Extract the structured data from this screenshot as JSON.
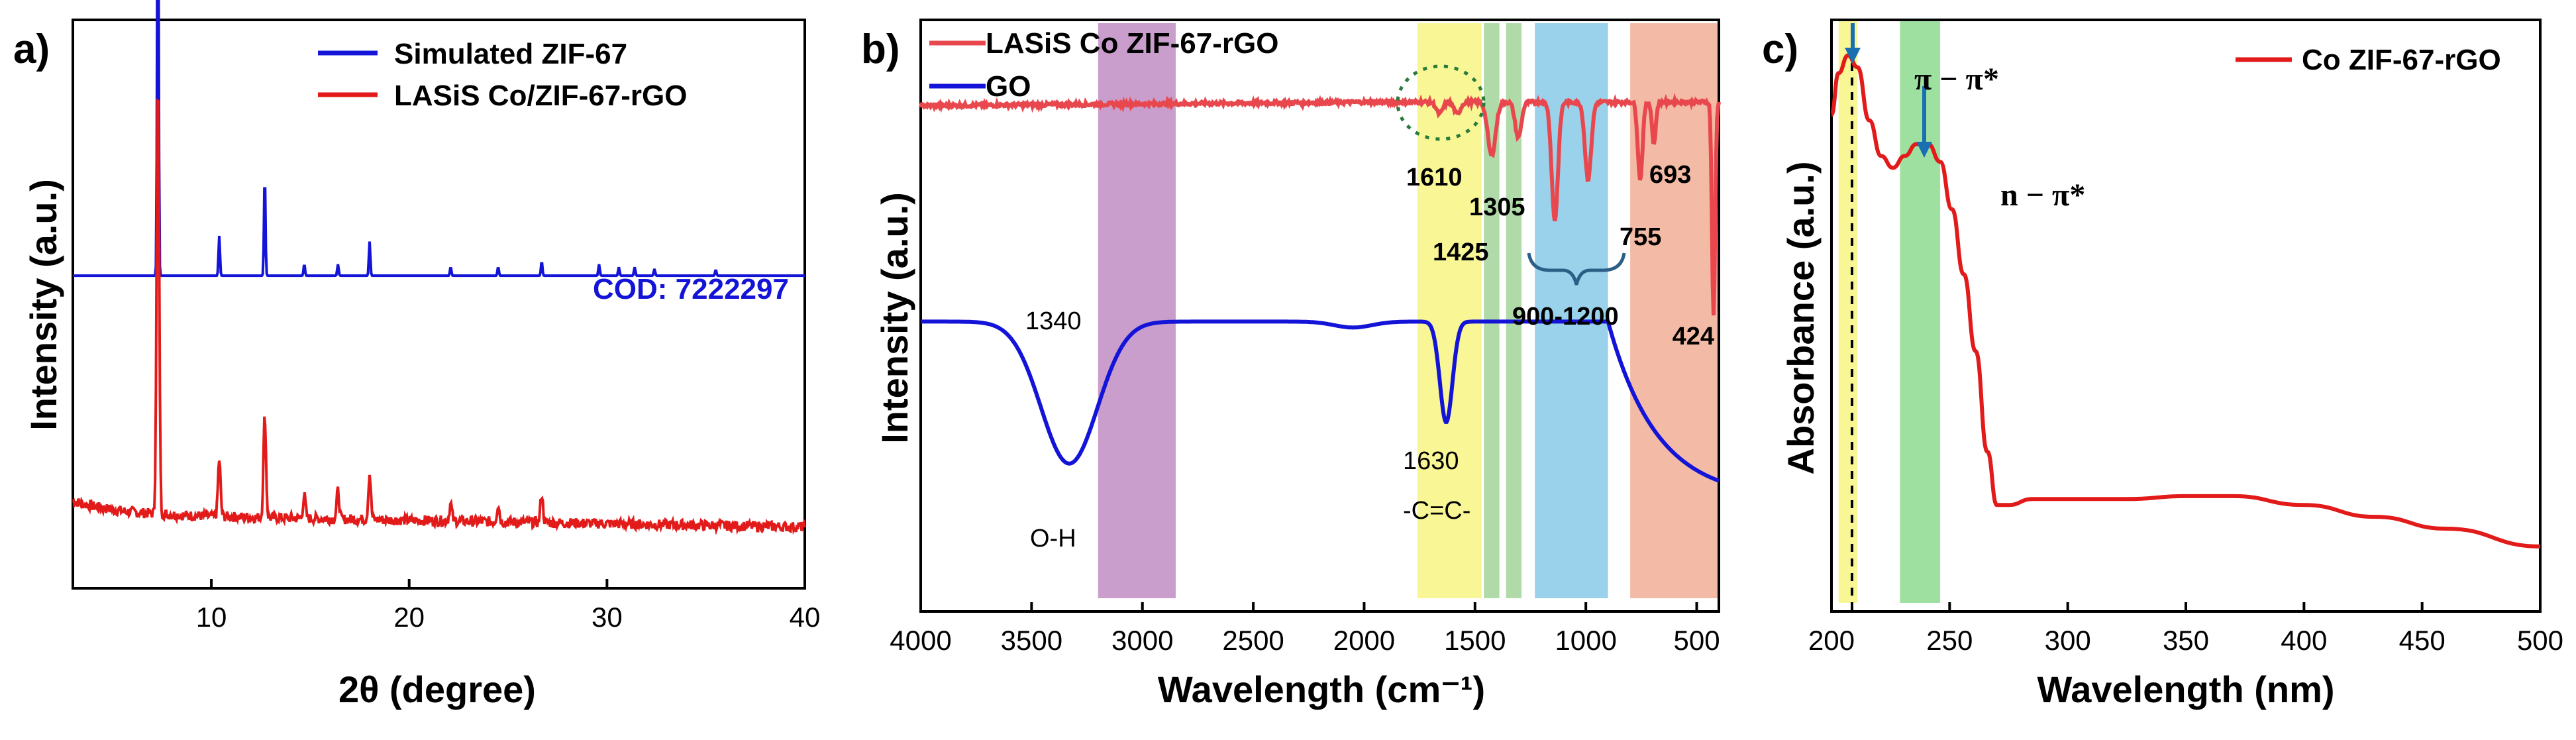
{
  "chart_data": [
    {
      "panel_label": "a)",
      "type": "line",
      "xlabel": "2θ (degree)",
      "ylabel": "Intensity (a.u.)",
      "xlim": [
        3,
        40
      ],
      "xticks": [
        10,
        20,
        30,
        40
      ],
      "annotation": "COD: 7222297",
      "legend": "top-right",
      "series": [
        {
          "name": "Simulated ZIF-67",
          "color": "#1414d8",
          "baseline": 0.55,
          "offset": 0,
          "peaks": [
            [
              7.3,
              0.87
            ],
            [
              10.4,
              0.07
            ],
            [
              12.7,
              0.18
            ],
            [
              14.7,
              0.02
            ],
            [
              16.4,
              0.02
            ],
            [
              18.0,
              0.06
            ],
            [
              22.1,
              0.015
            ],
            [
              24.5,
              0.015
            ],
            [
              26.7,
              0.025
            ],
            [
              29.6,
              0.02
            ],
            [
              30.6,
              0.015
            ],
            [
              31.4,
              0.015
            ],
            [
              32.4,
              0.012
            ],
            [
              35.5,
              0.01
            ]
          ]
        },
        {
          "name": "LASiS Co/ZIF-67-rGO",
          "color": "#e21a1a",
          "baseline": 0.13,
          "offset": 0,
          "peaks": [
            [
              7.3,
              0.76
            ],
            [
              10.4,
              0.1
            ],
            [
              12.7,
              0.18
            ],
            [
              14.7,
              0.04
            ],
            [
              16.4,
              0.05
            ],
            [
              18.0,
              0.08
            ],
            [
              22.1,
              0.03
            ],
            [
              24.5,
              0.03
            ],
            [
              26.7,
              0.05
            ]
          ]
        }
      ]
    },
    {
      "panel_label": "b)",
      "type": "line",
      "xlabel": "Wavelength (cm⁻¹)",
      "ylabel": "Intensity (a.u.)",
      "xlim": [
        4000,
        400
      ],
      "xticks": [
        4000,
        3500,
        3000,
        2500,
        2000,
        1500,
        1000,
        500
      ],
      "legend": "top-left",
      "bands": [
        {
          "from": 3200,
          "to": 2850,
          "color": "#c393c8"
        },
        {
          "from": 1760,
          "to": 1470,
          "color": "#f7f58a"
        },
        {
          "from": 1460,
          "to": 1390,
          "color": "#a7d7a0"
        },
        {
          "from": 1360,
          "to": 1290,
          "color": "#a7d7a0"
        },
        {
          "from": 1230,
          "to": 900,
          "color": "#8fcdea"
        },
        {
          "from": 800,
          "to": 400,
          "color": "#f2b49b"
        }
      ],
      "series": [
        {
          "name": "LASiS Co ZIF-67-rGO",
          "color": "#e8484d",
          "baseline": 0.855,
          "bands_down": [
            [
              1660,
              0.02,
              20
            ],
            [
              1580,
              0.02,
              20
            ],
            [
              1425,
              0.09,
              25
            ],
            [
              1305,
              0.06,
              20
            ],
            [
              1140,
              0.2,
              20
            ],
            [
              990,
              0.13,
              20
            ],
            [
              755,
              0.13,
              15
            ],
            [
              693,
              0.07,
              12
            ],
            [
              424,
              0.36,
              10
            ]
          ]
        },
        {
          "name": "GO",
          "color": "#1414d8",
          "baseline": 0.49,
          "bands_down": [
            [
              3330,
              0.24,
              180
            ],
            [
              1630,
              0.17,
              40
            ],
            [
              540,
              0.3,
              220
            ]
          ]
        }
      ],
      "annotations": [
        "1610",
        "1305",
        "1425",
        "755",
        "693",
        "900-1200",
        "424",
        "1340",
        "1630",
        "O-H",
        "-C=C-"
      ]
    },
    {
      "panel_label": "c)",
      "type": "line",
      "xlabel": "Wavelength (nm)",
      "ylabel": "Absorbance (a.u.)",
      "xlim": [
        200,
        500
      ],
      "xticks": [
        200,
        250,
        300,
        350,
        400,
        450,
        500
      ],
      "legend": "top-right",
      "bands": [
        {
          "from": 203,
          "to": 211,
          "color": "#f7f58a"
        },
        {
          "from": 229,
          "to": 246,
          "color": "#94dd95"
        }
      ],
      "series": [
        {
          "name": "Co ZIF-67-rGO",
          "color": "#e21a1a",
          "points": [
            [
              200,
              0.84
            ],
            [
              203,
              0.91
            ],
            [
              207,
              0.94
            ],
            [
              211,
              0.92
            ],
            [
              216,
              0.83
            ],
            [
              221,
              0.77
            ],
            [
              226,
              0.75
            ],
            [
              231,
              0.77
            ],
            [
              236,
              0.79
            ],
            [
              241,
              0.79
            ],
            [
              246,
              0.76
            ],
            [
              251,
              0.68
            ],
            [
              256,
              0.57
            ],
            [
              261,
              0.44
            ],
            [
              266,
              0.27
            ],
            [
              270,
              0.18
            ],
            [
              275,
              0.18
            ],
            [
              285,
              0.19
            ],
            [
              300,
              0.19
            ],
            [
              325,
              0.19
            ],
            [
              350,
              0.195
            ],
            [
              370,
              0.195
            ],
            [
              400,
              0.18
            ],
            [
              430,
              0.16
            ],
            [
              460,
              0.14
            ],
            [
              500,
              0.11
            ]
          ]
        }
      ],
      "annotations": [
        "π − π*",
        "n − π*"
      ]
    }
  ]
}
